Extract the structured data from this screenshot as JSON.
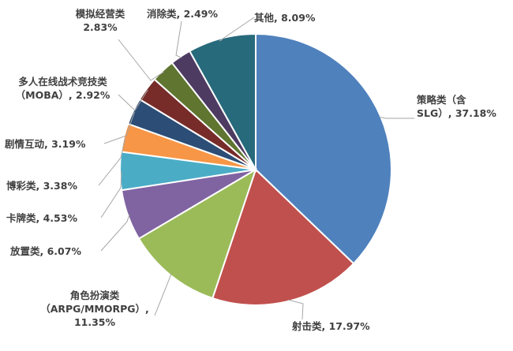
{
  "chart_data": {
    "type": "pie",
    "start_angle_deg": 0,
    "direction": "clockwise",
    "slices": [
      {
        "name": "策略类（含SLG）",
        "value": 37.18,
        "color": "#4f81bd",
        "label_lines": [
          "策略类（含",
          "SLG）, 37.18%"
        ]
      },
      {
        "name": "射击类",
        "value": 17.97,
        "color": "#c0504d",
        "label_lines": [
          "射击类, 17.97%"
        ]
      },
      {
        "name": "角色扮演类（ARPG/MMORPG）",
        "value": 11.35,
        "color": "#9bbb59",
        "label_lines": [
          "角色扮演类",
          "（ARPG/MMORPG）,",
          "11.35%"
        ]
      },
      {
        "name": "放置类",
        "value": 6.07,
        "color": "#8064a2",
        "label_lines": [
          "放置类, 6.07%"
        ]
      },
      {
        "name": "卡牌类",
        "value": 4.53,
        "color": "#4bacc6",
        "label_lines": [
          "卡牌类, 4.53%"
        ]
      },
      {
        "name": "博彩类",
        "value": 3.38,
        "color": "#f79646",
        "label_lines": [
          "博彩类, 3.38%"
        ]
      },
      {
        "name": "剧情互动",
        "value": 3.19,
        "color": "#2c4d75",
        "label_lines": [
          "剧情互动, 3.19%"
        ]
      },
      {
        "name": "多人在线战术竞技类（MOBA）",
        "value": 2.92,
        "color": "#772c2a",
        "label_lines": [
          "多人在线战术竞技类",
          "（MOBA）, 2.92%"
        ]
      },
      {
        "name": "模拟经营类",
        "value": 2.83,
        "color": "#5f7530",
        "label_lines": [
          "模拟经营类",
          "2.83%"
        ]
      },
      {
        "name": "消除类",
        "value": 2.49,
        "color": "#4d3b62",
        "label_lines": [
          "消除类, 2.49%"
        ]
      },
      {
        "name": "其他",
        "value": 8.09,
        "color": "#276a7c",
        "label_lines": [
          "其他, 8.09%"
        ]
      }
    ]
  }
}
